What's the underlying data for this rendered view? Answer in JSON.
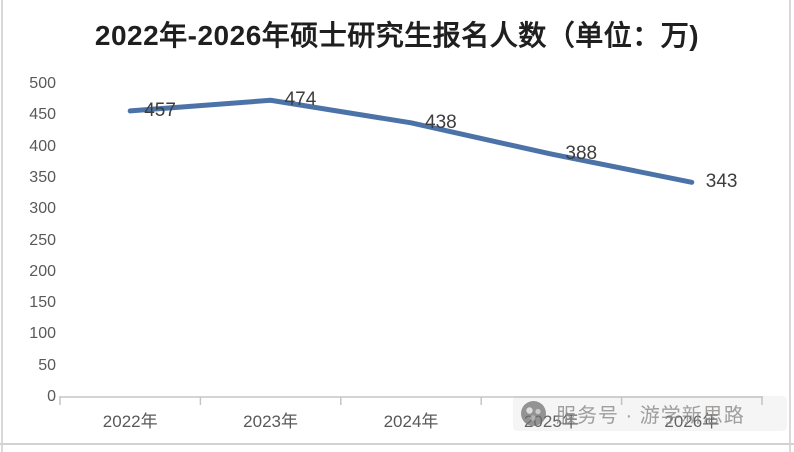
{
  "chart_data": {
    "type": "line",
    "title": "2022年-2026年硕士研究生报名人数（单位：万)",
    "categories": [
      "2022年",
      "2023年",
      "2024年",
      "2025年",
      "2026年"
    ],
    "values": [
      457,
      474,
      438,
      388,
      343
    ],
    "xlabel": "",
    "ylabel": "",
    "ylim": [
      0,
      500
    ],
    "yticks": [
      0,
      50,
      100,
      150,
      200,
      250,
      300,
      350,
      400,
      450,
      500
    ],
    "grid": false,
    "legend_position": "none",
    "data_labels_shown": true,
    "line_color": "#4c73a8",
    "axis_color": "#c6c6c6",
    "tick_label_color": "#595959",
    "data_label_color": "#3d3d3d"
  },
  "watermark": {
    "icon": "round-logo-icon",
    "text": "服务号 · 游学新思路"
  }
}
